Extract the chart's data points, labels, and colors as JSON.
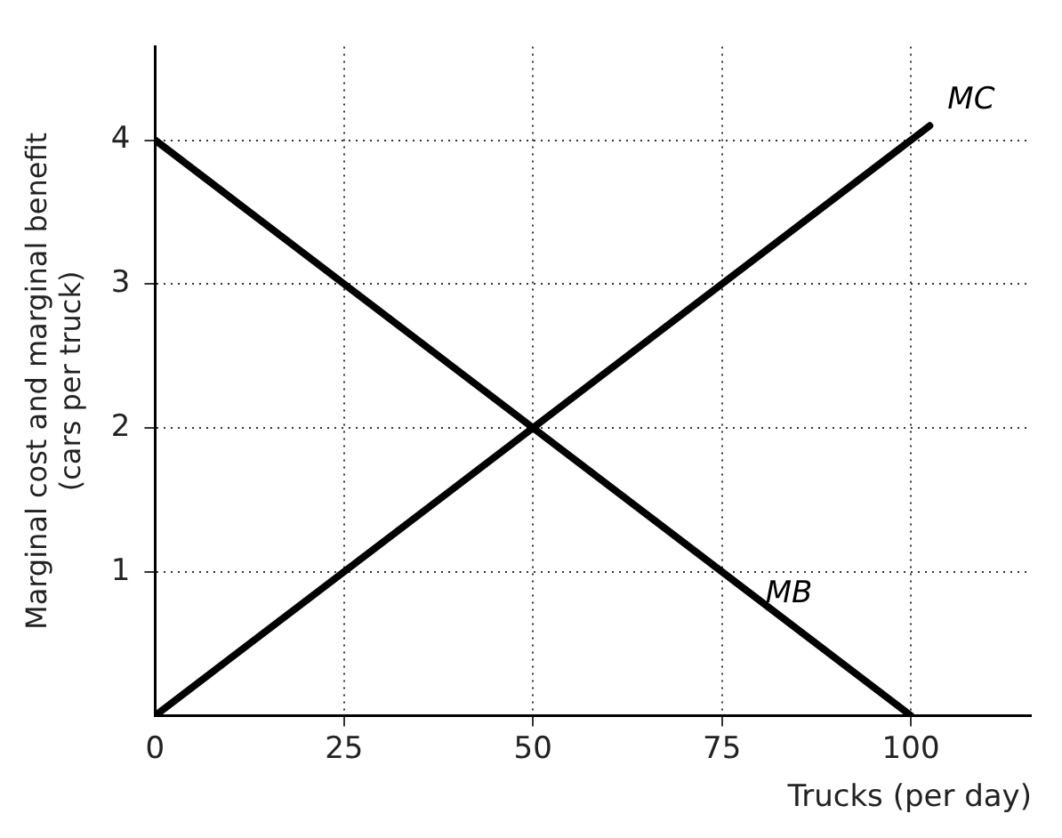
{
  "chart_data": {
    "type": "line",
    "xlabel": "Trucks (per day)",
    "ylabel": "Marginal cost and marginal benefit (cars per truck)",
    "series": [
      {
        "name": "MC",
        "color": "#000000",
        "x": [
          0,
          102.5
        ],
        "values": [
          0,
          4.1
        ]
      },
      {
        "name": "MB",
        "color": "#000000",
        "x": [
          0,
          100
        ],
        "values": [
          4,
          0
        ]
      }
    ],
    "xlim": [
      0,
      116
    ],
    "xticks": [
      0,
      25,
      50,
      75,
      100
    ],
    "ylim": [
      0,
      4.65
    ],
    "yticks": [
      1,
      2,
      3,
      4
    ],
    "grid": true,
    "legend": false,
    "marker": "none",
    "line_style": "solid"
  }
}
